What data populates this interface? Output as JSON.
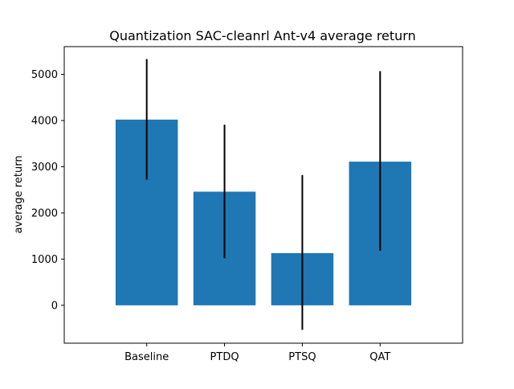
{
  "chart_data": {
    "type": "bar",
    "title": "Quantization SAC-cleanrl Ant-v4 average return",
    "xlabel": "",
    "ylabel": "average return",
    "categories": [
      "Baseline",
      "PTDQ",
      "PTSQ",
      "QAT"
    ],
    "values": [
      4020,
      2460,
      1130,
      3110
    ],
    "error_low": [
      2720,
      1020,
      -530,
      1180
    ],
    "error_high": [
      5330,
      3910,
      2820,
      5070
    ],
    "ylim": [
      -820,
      5600
    ],
    "yticks": [
      0,
      1000,
      2000,
      3000,
      4000,
      5000
    ],
    "ytick_labels": [
      "0",
      "1000",
      "2000",
      "3000",
      "4000",
      "5000"
    ],
    "grid": false,
    "legend": "none",
    "colors": {
      "bar": "#1f77b4",
      "error": "#000000",
      "axis": "#000000"
    }
  }
}
